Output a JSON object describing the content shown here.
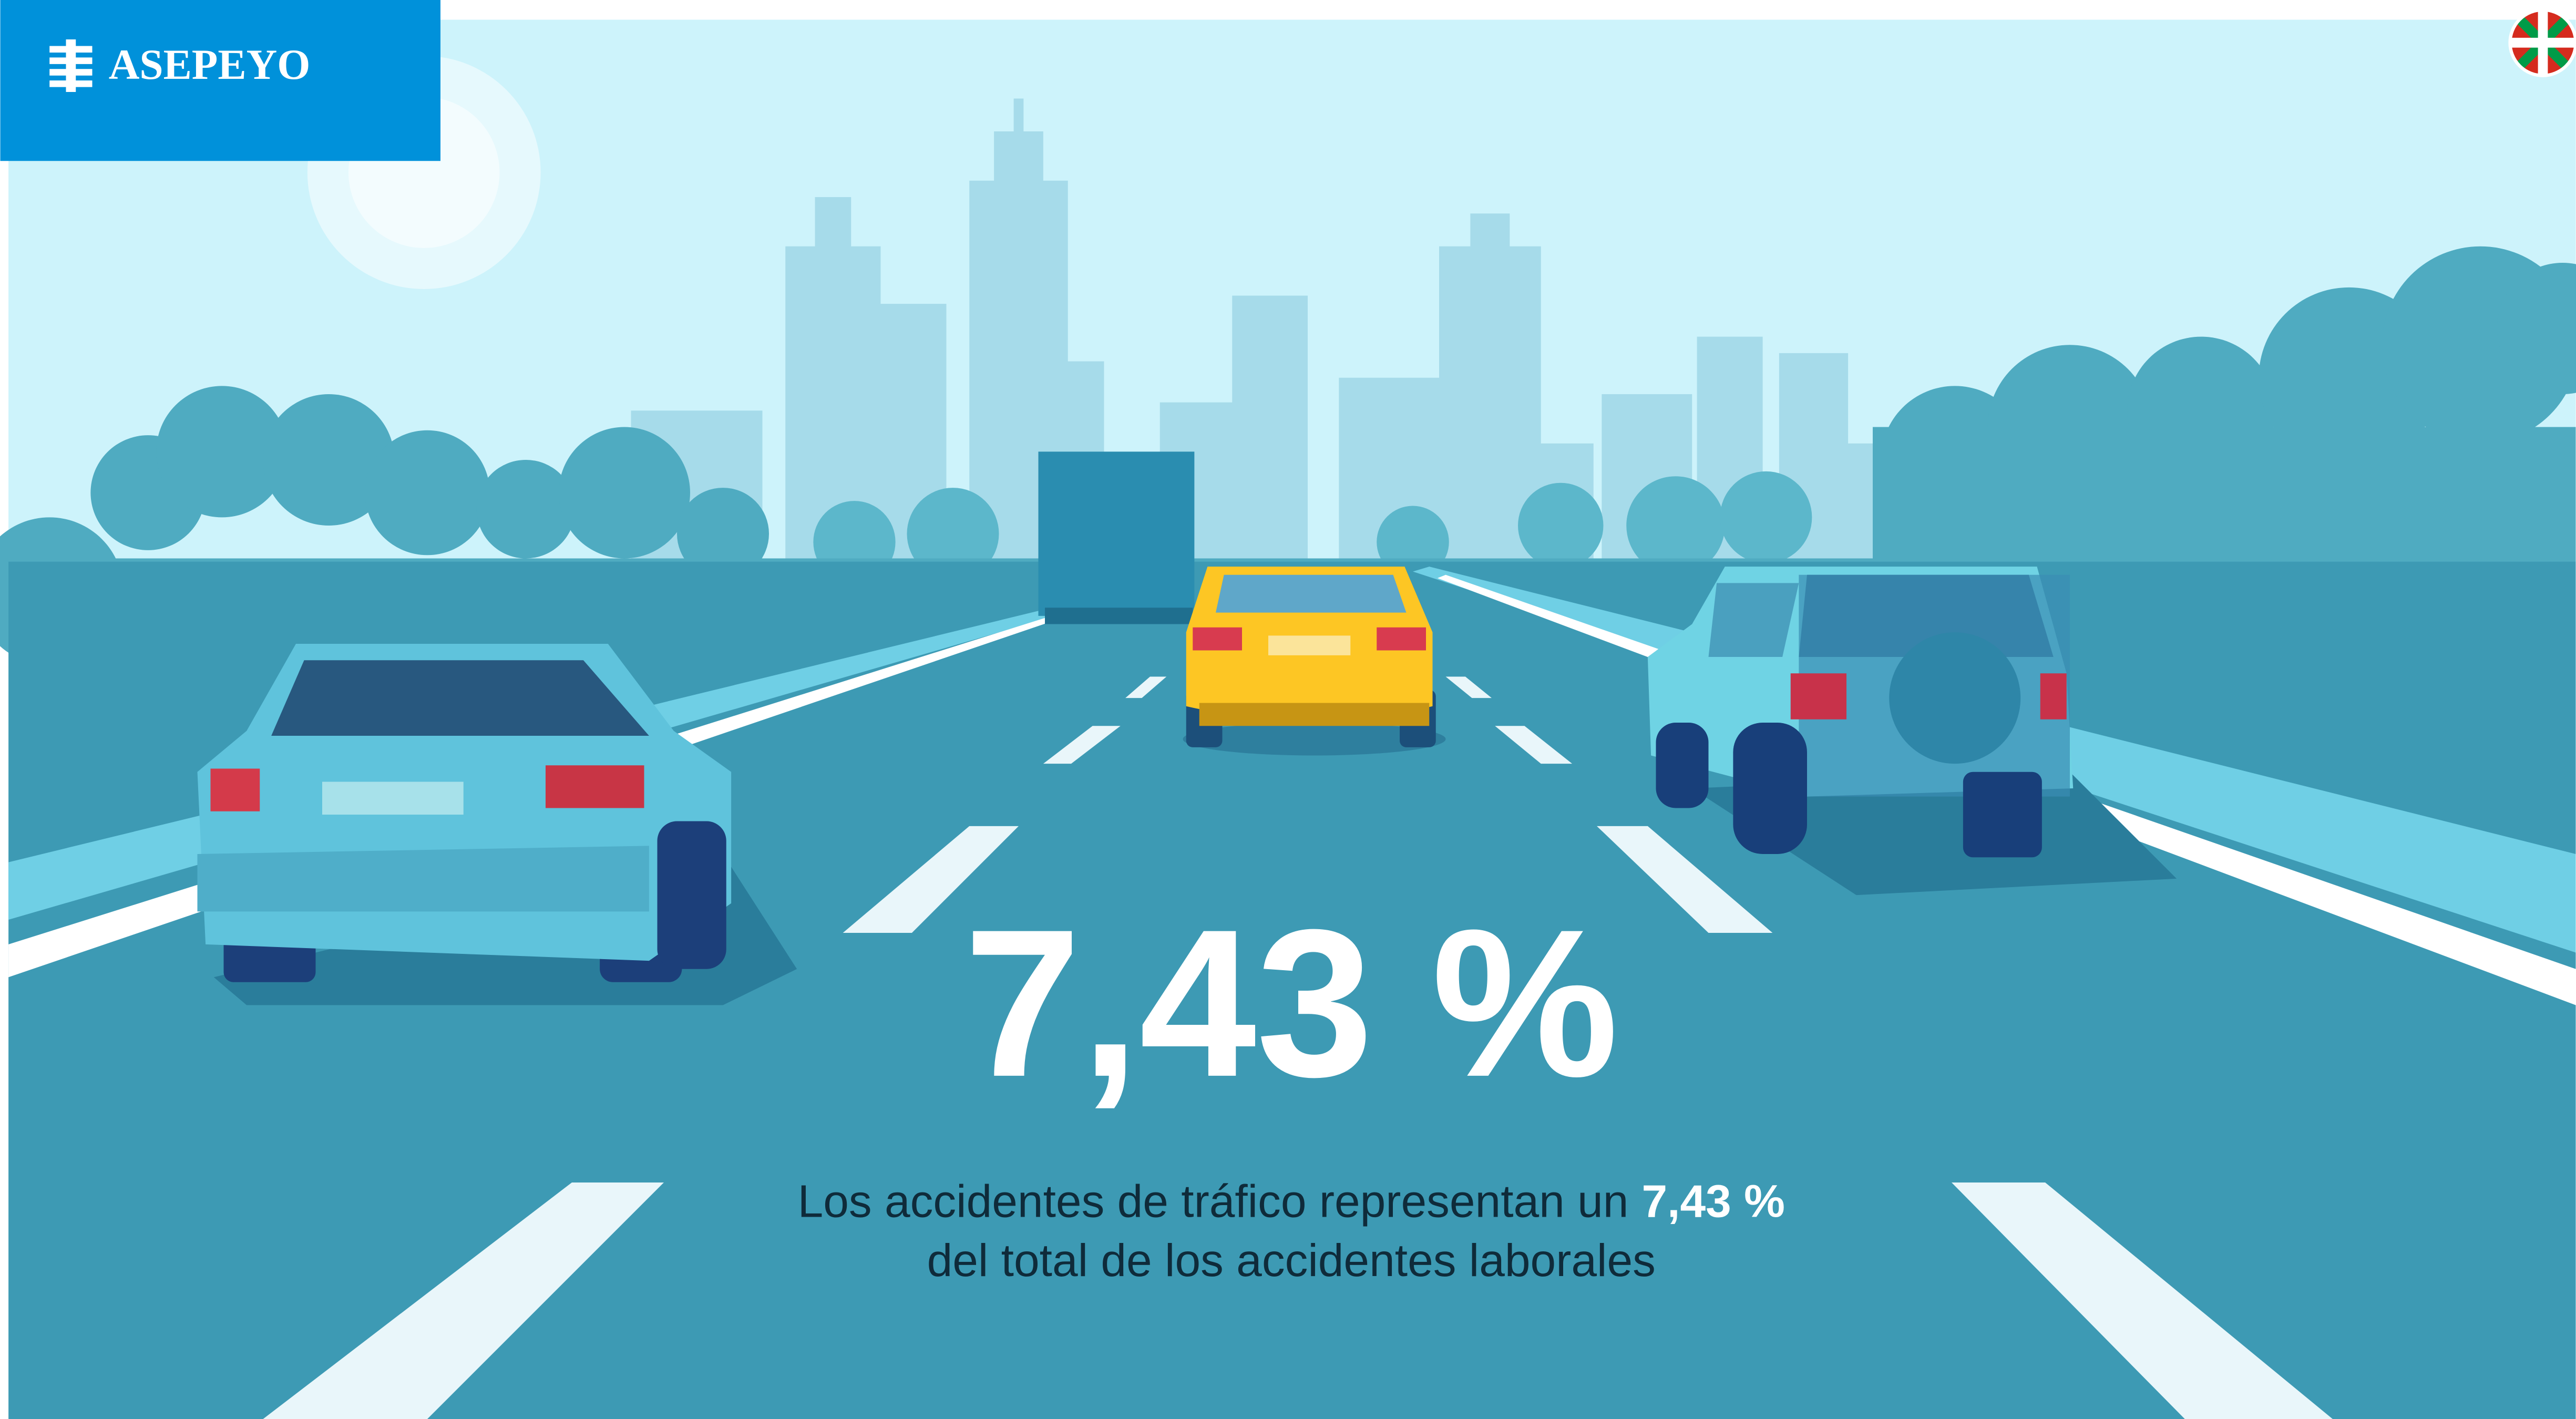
{
  "header": {
    "logo_text": "ASEPEYO"
  },
  "stat": {
    "value_text": "7,43 %",
    "caption_line1": "Los accidentes de tráfico representan un",
    "caption_highlight": "7,43 %",
    "caption_line2": "del total de los accidentes laborales"
  }
}
